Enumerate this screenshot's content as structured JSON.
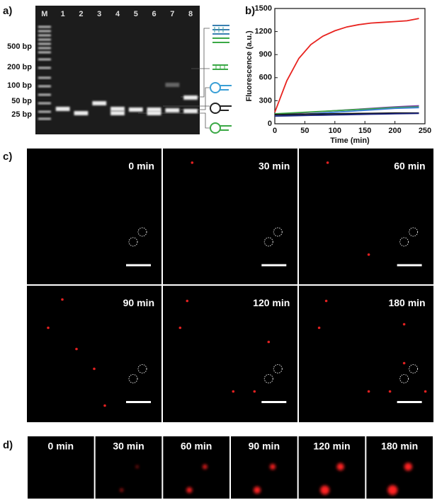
{
  "panel_labels": [
    "a)",
    "b)",
    "c)",
    "d)"
  ],
  "gel": {
    "lanes": [
      "M",
      "1",
      "2",
      "3",
      "4",
      "5",
      "6",
      "7",
      "8"
    ],
    "markers": [
      "500 bp",
      "200 bp",
      "100 bp",
      "50 bp",
      "25 bp"
    ]
  },
  "chart_data": {
    "type": "line",
    "x_label": "Time (min)",
    "y_label": "Fluorescence (a.u.)",
    "x": [
      0,
      20,
      40,
      60,
      80,
      100,
      120,
      140,
      160,
      180,
      200,
      220,
      240
    ],
    "series": [
      {
        "color": "#e8231f",
        "values": [
          150,
          560,
          850,
          1030,
          1140,
          1210,
          1260,
          1290,
          1310,
          1320,
          1330,
          1340,
          1370
        ]
      },
      {
        "color": "#7b3fa8",
        "values": [
          120,
          130,
          140,
          150,
          160,
          170,
          180,
          190,
          200,
          210,
          220,
          228,
          235
        ]
      },
      {
        "color": "#3aa845",
        "values": [
          130,
          138,
          146,
          154,
          162,
          170,
          178,
          186,
          194,
          202,
          210,
          215,
          220
        ]
      },
      {
        "color": "#3b7fd6",
        "values": [
          100,
          110,
          120,
          130,
          140,
          150,
          160,
          170,
          180,
          190,
          200,
          205,
          210
        ]
      },
      {
        "color": "#111111",
        "values": [
          120,
          122,
          124,
          126,
          128,
          130,
          132,
          134,
          136,
          138,
          140,
          140,
          140
        ]
      },
      {
        "color": "#1a237e",
        "values": [
          100,
          103,
          106,
          109,
          112,
          115,
          118,
          121,
          124,
          127,
          130,
          132,
          135
        ]
      }
    ],
    "xlim": [
      0,
      250
    ],
    "xticks": [
      0,
      50,
      100,
      150,
      200,
      250
    ],
    "ylim": [
      0,
      1500
    ],
    "yticks": [
      0,
      300,
      600,
      900,
      1200,
      1500
    ]
  },
  "timelapse": {
    "frames": [
      "0 min",
      "30 min",
      "60 min",
      "90 min",
      "120 min",
      "180 min"
    ]
  },
  "closeup": {
    "frames": [
      "0 min",
      "30 min",
      "60 min",
      "90 min",
      "120 min",
      "180 min"
    ]
  }
}
